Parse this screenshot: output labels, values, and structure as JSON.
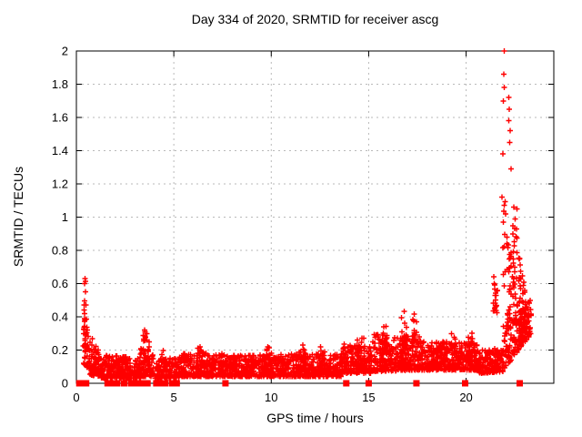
{
  "chart_data": {
    "type": "scatter",
    "title": "Day 334 of 2020, SRMTID for receiver ascg",
    "xlabel": "GPS time / hours",
    "ylabel": "SRMTID / TECUs",
    "xlim": [
      0,
      24.5
    ],
    "ylim": [
      0,
      2
    ],
    "xticks": [
      0,
      5,
      10,
      15,
      20
    ],
    "yticks": [
      0,
      0.2,
      0.4,
      0.6,
      0.8,
      1,
      1.2,
      1.4,
      1.6,
      1.8,
      2
    ],
    "grid": "dotted-major-both",
    "legend_position": "none",
    "marker_color": "#ff0000",
    "grid_color": "#b9b9b9",
    "axis_color": "#000000",
    "marker_shape": "plus",
    "zero_marker_shape": "filled-square",
    "seed": 42,
    "band_segments": [
      [
        0.35,
        0.7,
        0.12,
        0.5,
        0.08,
        0.28,
        45
      ],
      [
        0.7,
        1.25,
        0.05,
        0.3,
        0.04,
        0.17,
        80
      ],
      [
        1.25,
        3.3,
        0.03,
        0.17,
        0.03,
        0.16,
        260
      ],
      [
        3.3,
        3.95,
        0.04,
        0.22,
        0.04,
        0.18,
        80
      ],
      [
        3.95,
        5.3,
        0.03,
        0.15,
        0.03,
        0.15,
        140
      ],
      [
        5.3,
        7.6,
        0.04,
        0.18,
        0.04,
        0.18,
        270
      ],
      [
        7.6,
        13.6,
        0.04,
        0.17,
        0.04,
        0.18,
        720
      ],
      [
        13.6,
        15.2,
        0.06,
        0.24,
        0.06,
        0.22,
        200
      ],
      [
        15.2,
        17.6,
        0.07,
        0.3,
        0.08,
        0.28,
        290
      ],
      [
        17.6,
        20.6,
        0.08,
        0.26,
        0.08,
        0.24,
        360
      ],
      [
        20.6,
        21.9,
        0.06,
        0.2,
        0.07,
        0.22,
        150
      ],
      [
        21.9,
        23.35,
        0.08,
        0.35,
        0.3,
        0.5,
        160
      ]
    ],
    "spikes": [
      [
        0.45,
        0.06,
        0.28,
        0.5,
        10
      ],
      [
        3.6,
        0.18,
        0.12,
        0.33,
        28
      ],
      [
        4.5,
        0.15,
        0.08,
        0.22,
        16
      ],
      [
        6.4,
        0.2,
        0.08,
        0.22,
        16
      ],
      [
        9.9,
        0.15,
        0.08,
        0.22,
        12
      ],
      [
        11.6,
        0.2,
        0.08,
        0.24,
        14
      ],
      [
        12.6,
        0.15,
        0.08,
        0.22,
        12
      ],
      [
        14.6,
        0.2,
        0.1,
        0.28,
        18
      ],
      [
        15.9,
        0.2,
        0.12,
        0.35,
        18
      ],
      [
        16.8,
        0.15,
        0.18,
        0.45,
        22
      ],
      [
        17.35,
        0.12,
        0.16,
        0.42,
        18
      ],
      [
        18.8,
        0.3,
        0.1,
        0.27,
        20
      ],
      [
        19.4,
        0.15,
        0.1,
        0.3,
        14
      ],
      [
        20.3,
        0.2,
        0.1,
        0.32,
        16
      ],
      [
        21.5,
        0.12,
        0.42,
        0.66,
        20
      ],
      [
        21.95,
        0.06,
        0.55,
        1.1,
        8
      ],
      [
        22.2,
        0.12,
        0.3,
        0.85,
        30
      ],
      [
        22.5,
        0.12,
        0.35,
        0.95,
        32
      ],
      [
        22.75,
        0.12,
        0.3,
        0.8,
        26
      ],
      [
        23.0,
        0.12,
        0.3,
        0.65,
        22
      ],
      [
        23.2,
        0.1,
        0.28,
        0.5,
        16
      ]
    ],
    "outliers": [
      [
        0.44,
        0.63
      ],
      [
        0.47,
        0.615
      ],
      [
        0.43,
        0.6
      ],
      [
        0.46,
        0.55
      ],
      [
        0.5,
        0.47
      ],
      [
        21.95,
        2.0
      ],
      [
        21.93,
        1.86
      ],
      [
        21.96,
        1.78
      ],
      [
        21.9,
        1.7
      ],
      [
        21.88,
        1.38
      ],
      [
        22.18,
        1.72
      ],
      [
        22.22,
        1.65
      ],
      [
        22.2,
        1.58
      ],
      [
        22.26,
        1.52
      ],
      [
        22.24,
        1.45
      ],
      [
        22.3,
        1.29
      ],
      [
        21.85,
        1.12
      ],
      [
        21.95,
        1.07
      ],
      [
        22.02,
        1.02
      ],
      [
        21.9,
        0.97
      ],
      [
        22.45,
        1.06
      ],
      [
        22.52,
        0.99
      ],
      [
        22.58,
        0.93
      ],
      [
        22.62,
        1.05
      ],
      [
        22.1,
        0.88
      ],
      [
        22.4,
        0.9
      ]
    ],
    "zero_hours": [
      0.15,
      0.2,
      0.25,
      0.3,
      0.35,
      0.4,
      0.45,
      0.5,
      1.6,
      1.8,
      2.1,
      2.45,
      2.8,
      3.1,
      3.4,
      3.65,
      4.1,
      4.25,
      4.4,
      4.55,
      4.9,
      5.15,
      7.65,
      13.85,
      15.0,
      17.45,
      19.95,
      22.75
    ]
  }
}
